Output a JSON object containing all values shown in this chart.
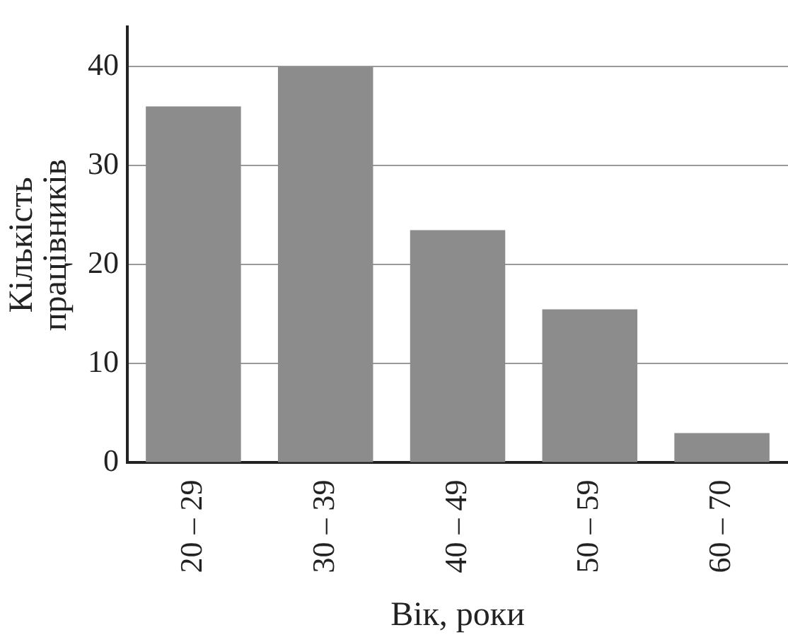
{
  "chart_data": {
    "type": "bar",
    "xlabel": "Вік, роки",
    "ylabel": "Кількість працівників",
    "categories": [
      "20 – 29",
      "30 – 39",
      "40 – 49",
      "50 – 59",
      "60 – 70"
    ],
    "values": [
      36,
      40,
      23.5,
      15.5,
      3
    ],
    "color": "#8c8c8c",
    "ylim": [
      0,
      44
    ],
    "yticks": [
      0,
      10,
      20,
      30,
      40
    ],
    "grid": "y",
    "legend": false
  }
}
